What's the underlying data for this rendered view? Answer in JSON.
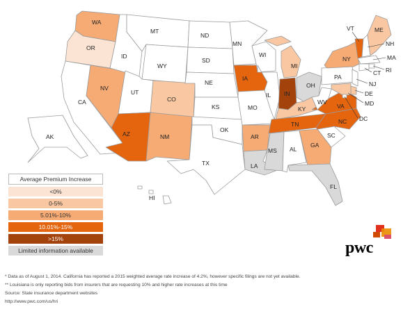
{
  "colors": {
    "none": "#ffffff",
    "lt0": "#fbe4d3",
    "r0_5": "#f9c8a2",
    "r5_10": "#f6aa74",
    "r10_15": "#e5640e",
    "gt15": "#a3420a",
    "limited": "#d9d9d9"
  },
  "states": [
    {
      "code": "WA",
      "cat": "r5_10"
    },
    {
      "code": "OR",
      "cat": "lt0"
    },
    {
      "code": "CA",
      "cat": "none"
    },
    {
      "code": "NV",
      "cat": "r5_10"
    },
    {
      "code": "ID",
      "cat": "none"
    },
    {
      "code": "MT",
      "cat": "none"
    },
    {
      "code": "WY",
      "cat": "none"
    },
    {
      "code": "UT",
      "cat": "none"
    },
    {
      "code": "AZ",
      "cat": "r10_15"
    },
    {
      "code": "CO",
      "cat": "r0_5"
    },
    {
      "code": "NM",
      "cat": "r5_10"
    },
    {
      "code": "ND",
      "cat": "none"
    },
    {
      "code": "SD",
      "cat": "none"
    },
    {
      "code": "NE",
      "cat": "none"
    },
    {
      "code": "KS",
      "cat": "none"
    },
    {
      "code": "OK",
      "cat": "none"
    },
    {
      "code": "TX",
      "cat": "none"
    },
    {
      "code": "MN",
      "cat": "none"
    },
    {
      "code": "IA",
      "cat": "r10_15"
    },
    {
      "code": "MO",
      "cat": "none"
    },
    {
      "code": "AR",
      "cat": "r5_10"
    },
    {
      "code": "LA",
      "cat": "limited"
    },
    {
      "code": "WI",
      "cat": "none"
    },
    {
      "code": "IL",
      "cat": "none"
    },
    {
      "code": "MI",
      "cat": "r0_5"
    },
    {
      "code": "IN",
      "cat": "gt15"
    },
    {
      "code": "OH",
      "cat": "limited"
    },
    {
      "code": "KY",
      "cat": "r0_5"
    },
    {
      "code": "TN",
      "cat": "r10_15"
    },
    {
      "code": "MS",
      "cat": "limited"
    },
    {
      "code": "AL",
      "cat": "none"
    },
    {
      "code": "GA",
      "cat": "r5_10"
    },
    {
      "code": "FL",
      "cat": "limited"
    },
    {
      "code": "SC",
      "cat": "none"
    },
    {
      "code": "NC",
      "cat": "r10_15"
    },
    {
      "code": "VA",
      "cat": "r10_15"
    },
    {
      "code": "WV",
      "cat": "none"
    },
    {
      "code": "PA",
      "cat": "none"
    },
    {
      "code": "NY",
      "cat": "r5_10"
    },
    {
      "code": "VT",
      "cat": "r10_15"
    },
    {
      "code": "NH",
      "cat": "none"
    },
    {
      "code": "ME",
      "cat": "r0_5"
    },
    {
      "code": "MA",
      "cat": "none"
    },
    {
      "code": "RI",
      "cat": "none"
    },
    {
      "code": "CT",
      "cat": "none"
    },
    {
      "code": "NJ",
      "cat": "none"
    },
    {
      "code": "DE",
      "cat": "r0_5"
    },
    {
      "code": "MD",
      "cat": "r0_5"
    },
    {
      "code": "DC",
      "cat": "none"
    },
    {
      "code": "AK",
      "cat": "none"
    },
    {
      "code": "HI",
      "cat": "none"
    }
  ],
  "legend": {
    "title": "Average Premium Increase",
    "items": [
      {
        "label": "<0%",
        "cat": "lt0"
      },
      {
        "label": "0-5%",
        "cat": "r0_5"
      },
      {
        "label": "5.01%-10%",
        "cat": "r5_10"
      },
      {
        "label": "10.01%-15%",
        "cat": "r10_15"
      },
      {
        "label": ">15%",
        "cat": "gt15"
      },
      {
        "label": "Limited information available",
        "cat": "limited"
      }
    ]
  },
  "footnotes": {
    "note1": "* Data as of August 1, 2014. California has reported a 2015 weighted average rate increase of 4.2%, however specific filings are not yet available.",
    "note2": "** Louisiana is only reporting bids from insurers that are requesting 10% and higher rate increases at this time",
    "source": "Source: State insurance department websites",
    "url": "http://www.pwc.com/us/hri"
  },
  "logo": {
    "text": "pwc"
  }
}
